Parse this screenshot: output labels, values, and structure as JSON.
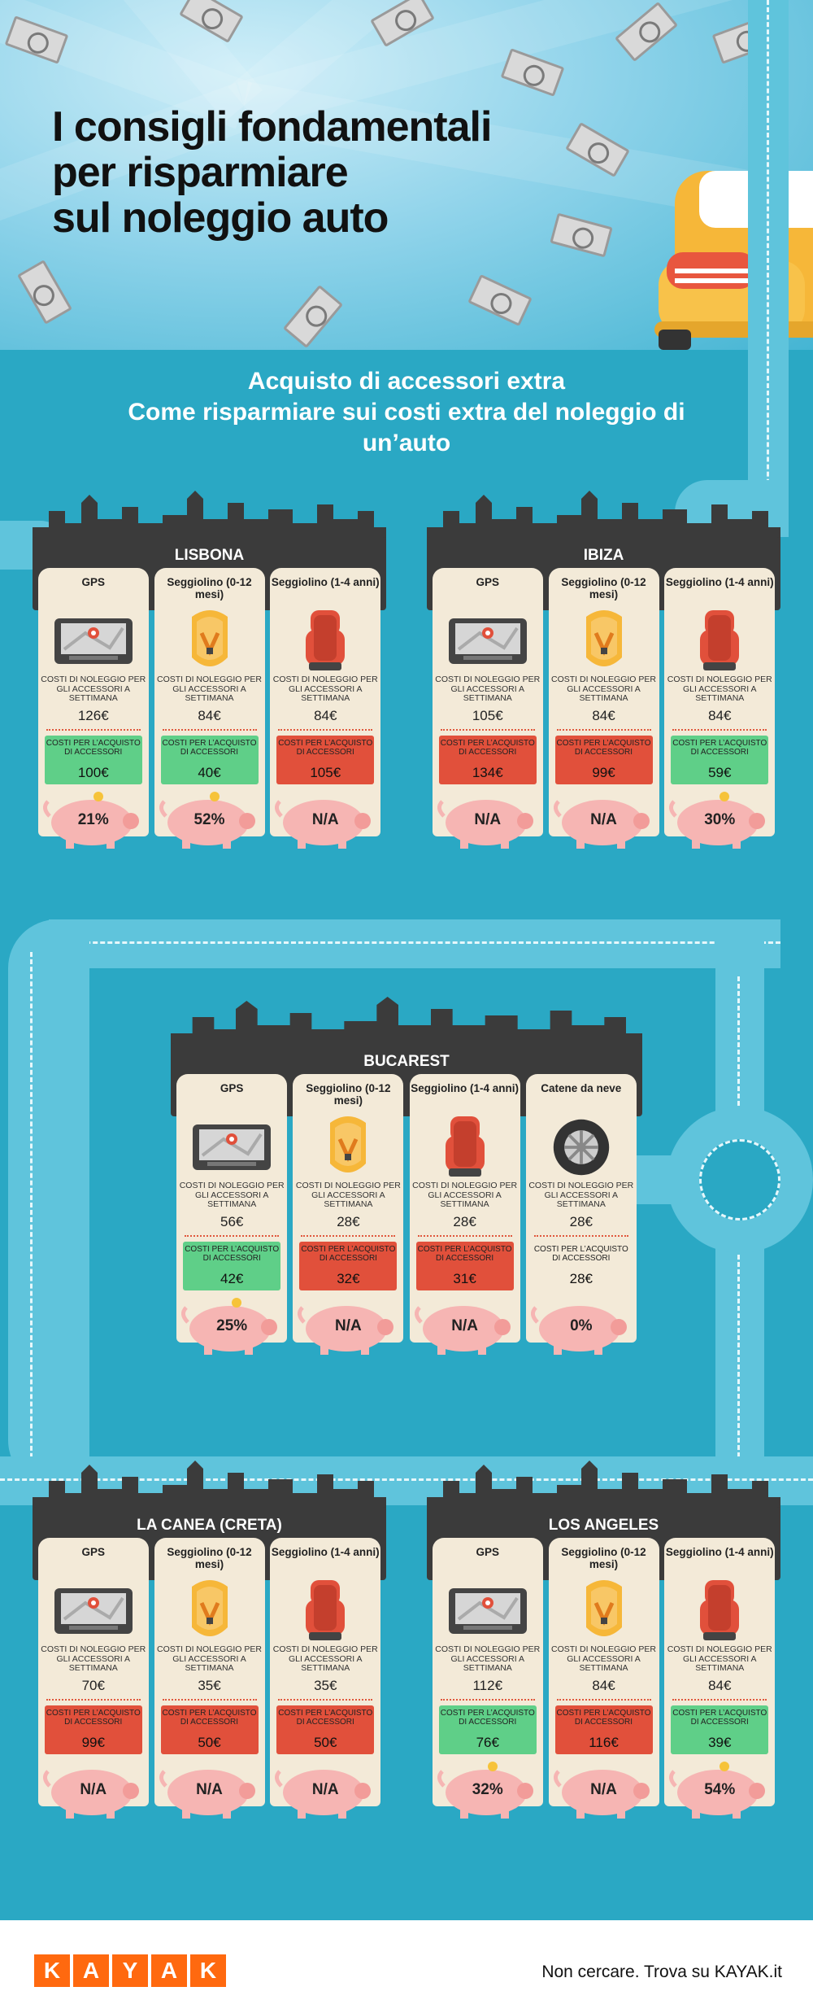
{
  "title_lines": [
    "I consigli fondamentali",
    "per risparmiare",
    "sul noleggio auto"
  ],
  "subtitle_lines": [
    "Acquisto di accessori extra",
    "Come risparmiare sui costi extra del noleggio di",
    "un’auto"
  ],
  "colors": {
    "background": "#2aa8c4",
    "panel": "#3b3b3b",
    "card": "#f3ead8",
    "green": "#5fcf88",
    "red": "#e1503b",
    "pig": "#f6b5b3",
    "brand": "#ff690f"
  },
  "cities": [
    {
      "name": "LISBONA",
      "cards": [
        {
          "title": "GPS",
          "icon": "gps-icon",
          "rent_label": "COSTI DI NOLEGGIO PER GLI ACCESSORI A SETTIMANA",
          "rent": "126€",
          "buy_label": "COSTI PER L’ACQUISTO DI ACCESSORI",
          "buy": "100€",
          "status": "green",
          "saving": "21%"
        },
        {
          "title": "Seggiolino (0-12 mesi)",
          "icon": "infant-seat-icon",
          "rent_label": "COSTI DI NOLEGGIO PER GLI ACCESSORI A SETTIMANA",
          "rent": "84€",
          "buy_label": "COSTI PER L’ACQUISTO DI ACCESSORI",
          "buy": "40€",
          "status": "green",
          "saving": "52%"
        },
        {
          "title": "Seggiolino (1-4 anni)",
          "icon": "child-seat-icon",
          "rent_label": "COSTI DI NOLEGGIO PER GLI ACCESSORI A SETTIMANA",
          "rent": "84€",
          "buy_label": "COSTI PER L’ACQUISTO DI ACCESSORI",
          "buy": "105€",
          "status": "red",
          "saving": "N/A"
        }
      ]
    },
    {
      "name": "IBIZA",
      "cards": [
        {
          "title": "GPS",
          "icon": "gps-icon",
          "rent_label": "COSTI DI NOLEGGIO PER GLI ACCESSORI A SETTIMANA",
          "rent": "105€",
          "buy_label": "COSTI PER L’ACQUISTO DI ACCESSORI",
          "buy": "134€",
          "status": "red",
          "saving": "N/A"
        },
        {
          "title": "Seggiolino (0-12 mesi)",
          "icon": "infant-seat-icon",
          "rent_label": "COSTI DI NOLEGGIO PER GLI ACCESSORI A SETTIMANA",
          "rent": "84€",
          "buy_label": "COSTI PER L’ACQUISTO DI ACCESSORI",
          "buy": "99€",
          "status": "red",
          "saving": "N/A"
        },
        {
          "title": "Seggiolino (1-4 anni)",
          "icon": "child-seat-icon",
          "rent_label": "COSTI DI NOLEGGIO PER GLI ACCESSORI A SETTIMANA",
          "rent": "84€",
          "buy_label": "COSTI PER L’ACQUISTO DI ACCESSORI",
          "buy": "59€",
          "status": "green",
          "saving": "30%"
        }
      ]
    },
    {
      "name": "BUCAREST",
      "cards": [
        {
          "title": "GPS",
          "icon": "gps-icon",
          "rent_label": "COSTI DI NOLEGGIO PER GLI ACCESSORI A SETTIMANA",
          "rent": "56€",
          "buy_label": "COSTI PER L’ACQUISTO DI ACCESSORI",
          "buy": "42€",
          "status": "green",
          "saving": "25%"
        },
        {
          "title": "Seggiolino (0-12 mesi)",
          "icon": "infant-seat-icon",
          "rent_label": "COSTI DI NOLEGGIO PER GLI ACCESSORI A SETTIMANA",
          "rent": "28€",
          "buy_label": "COSTI PER L’ACQUISTO DI ACCESSORI",
          "buy": "32€",
          "status": "red",
          "saving": "N/A"
        },
        {
          "title": "Seggiolino (1-4 anni)",
          "icon": "child-seat-icon",
          "rent_label": "COSTI DI NOLEGGIO PER GLI ACCESSORI A SETTIMANA",
          "rent": "28€",
          "buy_label": "COSTI PER L’ACQUISTO DI ACCESSORI",
          "buy": "31€",
          "status": "red",
          "saving": "N/A"
        },
        {
          "title": "Catene da neve",
          "icon": "snow-chain-wheel-icon",
          "rent_label": "COSTI DI NOLEGGIO PER GLI ACCESSORI A SETTIMANA",
          "rent": "28€",
          "buy_label": "COSTI PER L’ACQUISTO DI ACCESSORI",
          "buy": "28€",
          "status": "none",
          "saving": "0%"
        }
      ]
    },
    {
      "name": "LA CANEA (CRETA)",
      "cards": [
        {
          "title": "GPS",
          "icon": "gps-icon",
          "rent_label": "COSTI DI NOLEGGIO PER GLI ACCESSORI A SETTIMANA",
          "rent": "70€",
          "buy_label": "COSTI PER L’ACQUISTO DI ACCESSORI",
          "buy": "99€",
          "status": "red",
          "saving": "N/A"
        },
        {
          "title": "Seggiolino (0-12 mesi)",
          "icon": "infant-seat-icon",
          "rent_label": "COSTI DI NOLEGGIO PER GLI ACCESSORI A SETTIMANA",
          "rent": "35€",
          "buy_label": "COSTI PER L’ACQUISTO DI ACCESSORI",
          "buy": "50€",
          "status": "red",
          "saving": "N/A"
        },
        {
          "title": "Seggiolino (1-4 anni)",
          "icon": "child-seat-icon",
          "rent_label": "COSTI DI NOLEGGIO PER GLI ACCESSORI A SETTIMANA",
          "rent": "35€",
          "buy_label": "COSTI PER L’ACQUISTO DI ACCESSORI",
          "buy": "50€",
          "status": "red",
          "saving": "N/A"
        }
      ]
    },
    {
      "name": "LOS ANGELES",
      "cards": [
        {
          "title": "GPS",
          "icon": "gps-icon",
          "rent_label": "COSTI DI NOLEGGIO PER GLI ACCESSORI A SETTIMANA",
          "rent": "112€",
          "buy_label": "COSTI PER L’ACQUISTO DI ACCESSORI",
          "buy": "76€",
          "status": "green",
          "saving": "32%"
        },
        {
          "title": "Seggiolino (0-12 mesi)",
          "icon": "infant-seat-icon",
          "rent_label": "COSTI DI NOLEGGIO PER GLI ACCESSORI A SETTIMANA",
          "rent": "84€",
          "buy_label": "COSTI PER L’ACQUISTO DI ACCESSORI",
          "buy": "116€",
          "status": "red",
          "saving": "N/A"
        },
        {
          "title": "Seggiolino (1-4 anni)",
          "icon": "child-seat-icon",
          "rent_label": "COSTI DI NOLEGGIO PER GLI ACCESSORI A SETTIMANA",
          "rent": "84€",
          "buy_label": "COSTI PER L’ACQUISTO DI ACCESSORI",
          "buy": "39€",
          "status": "green",
          "saving": "54%"
        }
      ]
    }
  ],
  "footer": {
    "logo_letters": [
      "K",
      "A",
      "Y",
      "A",
      "K"
    ],
    "tagline": "Non cercare. Trova su KAYAK.it"
  }
}
